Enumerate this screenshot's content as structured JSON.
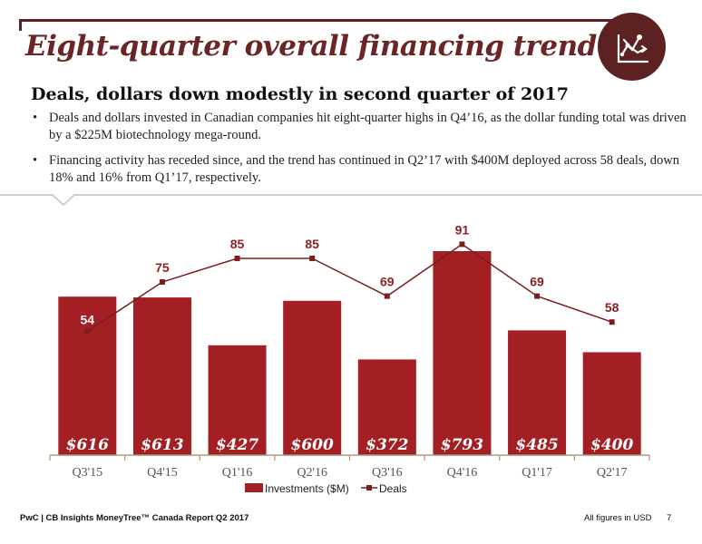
{
  "header": {
    "title": "Eight-quarter overall financing trend",
    "icon": "line-chart-icon",
    "subtitle": "Deals, dollars down modestly in second quarter of 2017",
    "bullets": [
      "Deals and dollars invested in Canadian companies hit eight-quarter highs in Q4’16, as the dollar funding total was driven by a $225M biotechnology mega-round.",
      "Financing activity has receded since, and the trend has continued in Q2’17 with $400M deployed across 58 deals, down 18% and 16% from Q1’17, respectively."
    ]
  },
  "chart_data": {
    "type": "bar",
    "categories": [
      "Q3'15",
      "Q4'15",
      "Q1'16",
      "Q2'16",
      "Q3'16",
      "Q4'16",
      "Q1'17",
      "Q2'17"
    ],
    "series": [
      {
        "name": "Investments ($M)",
        "type": "bar",
        "values": [
          616,
          613,
          427,
          600,
          372,
          793,
          485,
          400
        ],
        "labels": [
          "$616",
          "$613",
          "$427",
          "$600",
          "$372",
          "$793",
          "$485",
          "$400"
        ],
        "color": "#a31f24"
      },
      {
        "name": "Deals",
        "type": "line",
        "values": [
          54,
          75,
          85,
          85,
          69,
          91,
          69,
          58
        ],
        "color": "#7a1e1e"
      }
    ],
    "legend": "bottom",
    "grid": false
  },
  "footer": {
    "source": "PwC | CB Insights MoneyTree™ Canada Report Q2 2017",
    "note": "All figures in USD",
    "page": "7"
  }
}
